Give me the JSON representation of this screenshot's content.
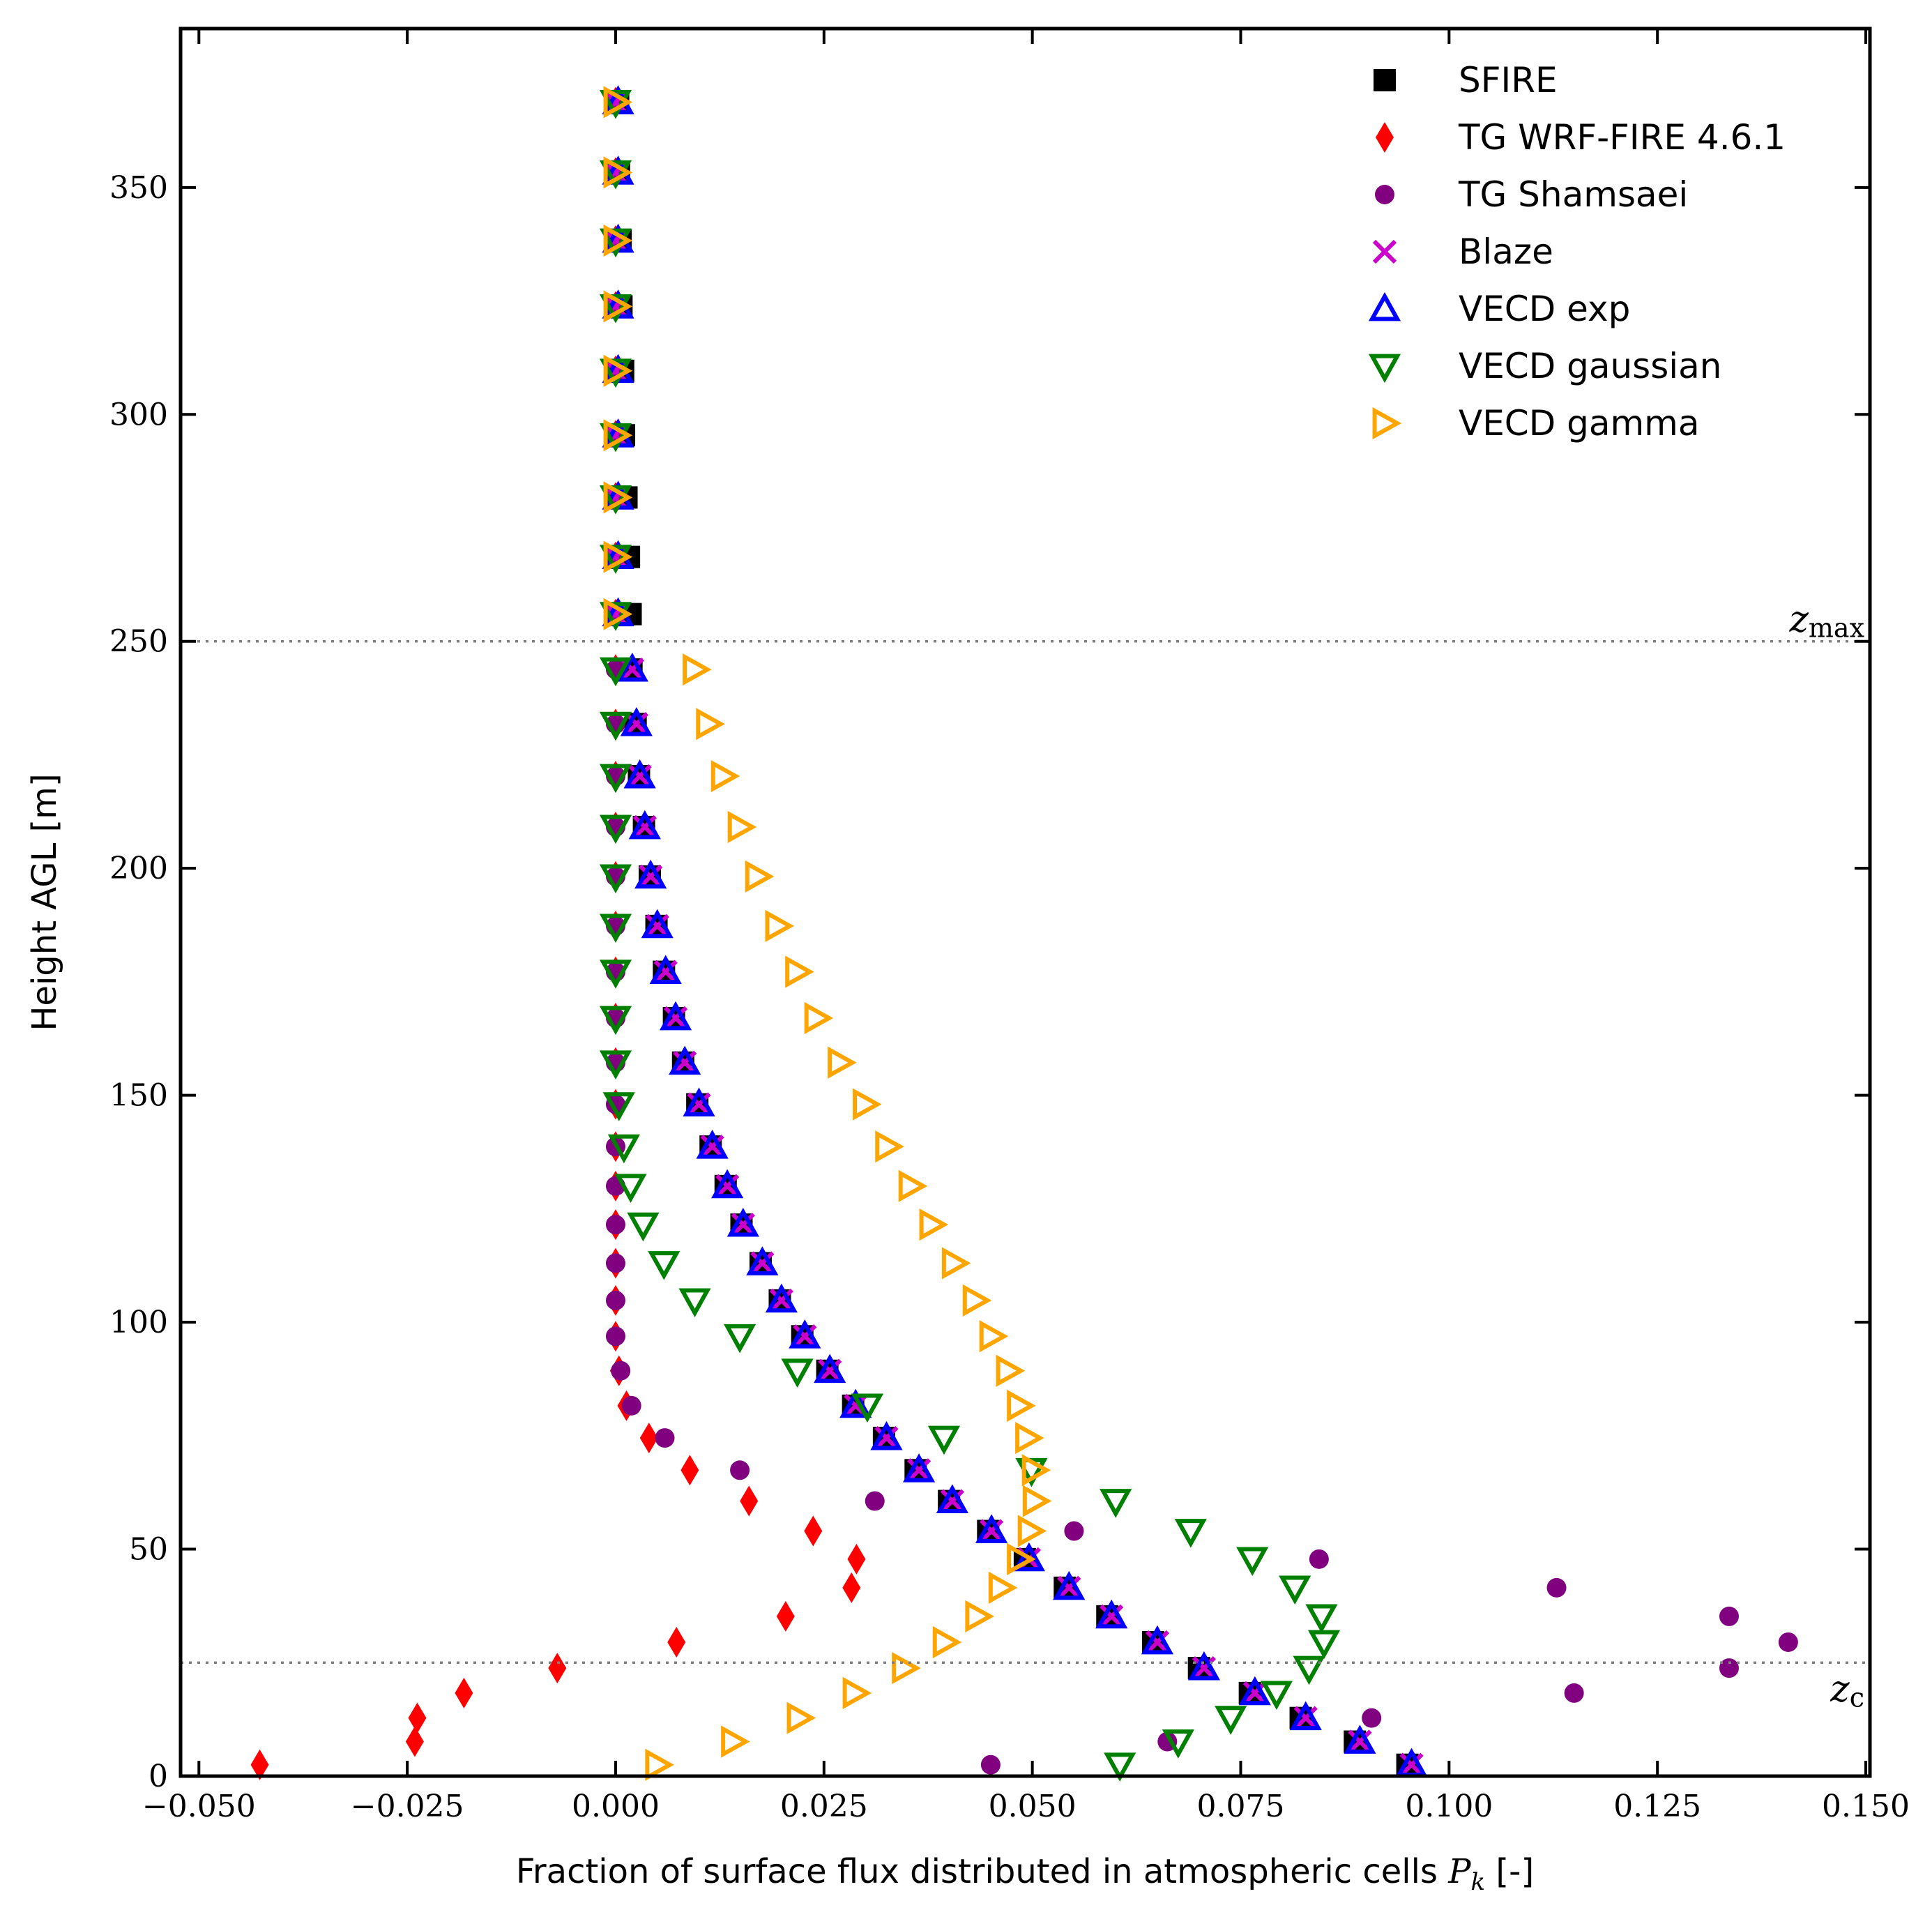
{
  "chart_data": {
    "type": "scatter",
    "xlabel": "Fraction of surface flux distributed in atmospheric cells",
    "xlabel_symbol": "P",
    "xlabel_subscript": "k",
    "xlabel_unit": "[-]",
    "ylabel": "Height AGL [m]",
    "xlim": [
      -0.0522,
      0.1505
    ],
    "ylim": [
      0,
      385
    ],
    "xticks": [
      -0.05,
      -0.025,
      0.0,
      0.025,
      0.05,
      0.075,
      0.1,
      0.125,
      0.15
    ],
    "xtick_labels": [
      "−0.050",
      "−0.025",
      "0.000",
      "0.025",
      "0.050",
      "0.075",
      "0.100",
      "0.125",
      "0.150"
    ],
    "yticks": [
      0,
      50,
      100,
      150,
      200,
      250,
      300,
      350
    ],
    "ytick_labels": [
      "0",
      "50",
      "100",
      "150",
      "200",
      "250",
      "300",
      "350"
    ],
    "grid": false,
    "legend_position": "top-right",
    "reference_lines": [
      {
        "y": 250,
        "label": "z",
        "subscript": "max",
        "color": "#808080"
      },
      {
        "y": 25,
        "label": "z",
        "subscript": "c",
        "color": "#808080"
      }
    ],
    "heights": [
      2.5,
      7.6,
      12.8,
      18.3,
      23.8,
      29.5,
      35.2,
      41.5,
      47.8,
      54,
      60.6,
      67.4,
      74.5,
      81.6,
      89.3,
      96.9,
      104.8,
      113,
      121.5,
      130,
      138.7,
      148,
      157.2,
      167,
      177.2,
      187.3,
      198.2,
      209.1,
      220.3,
      231.8,
      243.8,
      256,
      268.6,
      281.7,
      295.4,
      309.6,
      323.8,
      338.3,
      353.3,
      368.8
    ],
    "series": [
      {
        "name": "SFIRE",
        "marker": "square",
        "color": "#000000",
        "values": [
          0.095,
          0.0887,
          0.0822,
          0.0761,
          0.07,
          0.0645,
          0.059,
          0.0539,
          0.0491,
          0.0447,
          0.04,
          0.036,
          0.0322,
          0.0285,
          0.0254,
          0.0224,
          0.0197,
          0.0174,
          0.0151,
          0.0132,
          0.0114,
          0.0098,
          0.0081,
          0.007,
          0.0058,
          0.0049,
          0.0041,
          0.0034,
          0.0028,
          0.0024,
          0.0019,
          0.0018,
          0.0016,
          0.0013,
          0.001,
          0.0009,
          0.0007,
          0.0006,
          0.0004,
          0.0003
        ]
      },
      {
        "name": "TG WRF-FIRE 4.6.1",
        "marker": "diamond",
        "color": "#ff0000",
        "values": [
          -0.0427,
          -0.0241,
          -0.0238,
          -0.0182,
          -0.007,
          0.0073,
          0.0204,
          0.0283,
          0.0289,
          0.0237,
          0.016,
          0.0089,
          0.004,
          0.0013,
          0.0004,
          0,
          0,
          0,
          0,
          0,
          0,
          0,
          0,
          0,
          0,
          0,
          0,
          0,
          0,
          0,
          0,
          0,
          0,
          0,
          0,
          0,
          0,
          0,
          0,
          0
        ]
      },
      {
        "name": "TG Shamsaei",
        "marker": "circle",
        "color": "#800080",
        "values": [
          0.045,
          0.0662,
          0.0907,
          0.115,
          0.1336,
          0.1407,
          0.1336,
          0.1129,
          0.0844,
          0.055,
          0.0311,
          0.0149,
          0.0059,
          0.0019,
          0.0006,
          0,
          0,
          0,
          0,
          0,
          0,
          0,
          0,
          0,
          0,
          0,
          0,
          0,
          0,
          0,
          0,
          0,
          0,
          0,
          0,
          0,
          0,
          0,
          0,
          0
        ]
      },
      {
        "name": "Blaze",
        "marker": "x",
        "color": "#cc00cc",
        "values": [
          0.0955,
          0.0893,
          0.0828,
          0.0767,
          0.0706,
          0.065,
          0.0595,
          0.0544,
          0.0496,
          0.0451,
          0.0404,
          0.0364,
          0.0325,
          0.0288,
          0.0257,
          0.0227,
          0.0199,
          0.0176,
          0.0153,
          0.0134,
          0.0116,
          0.01,
          0.0083,
          0.0072,
          0.006,
          0.005,
          0.0042,
          0.0035,
          0.0029,
          0.0025,
          0.002,
          0,
          0,
          0,
          0,
          0,
          0,
          0,
          0,
          0
        ]
      },
      {
        "name": "VECD exp",
        "marker": "triangle-up",
        "color": "#0000ff",
        "values": [
          0.0955,
          0.0893,
          0.0828,
          0.0767,
          0.0706,
          0.065,
          0.0595,
          0.0544,
          0.0496,
          0.0451,
          0.0404,
          0.0364,
          0.0325,
          0.0288,
          0.0257,
          0.0227,
          0.0199,
          0.0176,
          0.0153,
          0.0134,
          0.0116,
          0.01,
          0.0083,
          0.0072,
          0.006,
          0.005,
          0.0042,
          0.0035,
          0.0029,
          0.0025,
          0.002,
          0.0003,
          0.0003,
          0.0003,
          0.0003,
          0.0003,
          0.0003,
          0.0003,
          0.0003,
          0.0003
        ]
      },
      {
        "name": "VECD gaussian",
        "marker": "triangle-down",
        "color": "#008000",
        "values": [
          0.0605,
          0.0675,
          0.0738,
          0.0793,
          0.0832,
          0.085,
          0.0847,
          0.0815,
          0.0764,
          0.069,
          0.06,
          0.0499,
          0.0394,
          0.0302,
          0.0218,
          0.0149,
          0.0095,
          0.0058,
          0.0033,
          0.0018,
          0.001,
          0.0004,
          0,
          0,
          0,
          0,
          0,
          0,
          0,
          0,
          0,
          0,
          0,
          0,
          0,
          0,
          0,
          0,
          0,
          0
        ]
      },
      {
        "name": "VECD gamma",
        "marker": "triangle-right",
        "color": "#ffa500",
        "values": [
          0.005,
          0.0141,
          0.022,
          0.0287,
          0.0346,
          0.0395,
          0.0434,
          0.0462,
          0.0484,
          0.0497,
          0.0503,
          0.0502,
          0.0494,
          0.0484,
          0.0471,
          0.0451,
          0.0431,
          0.0406,
          0.0379,
          0.0354,
          0.0326,
          0.0299,
          0.0269,
          0.0241,
          0.0218,
          0.0194,
          0.017,
          0.0149,
          0.0129,
          0.0111,
          0.0095,
          0,
          0,
          0,
          0,
          0,
          0,
          0,
          0,
          0
        ]
      }
    ]
  }
}
